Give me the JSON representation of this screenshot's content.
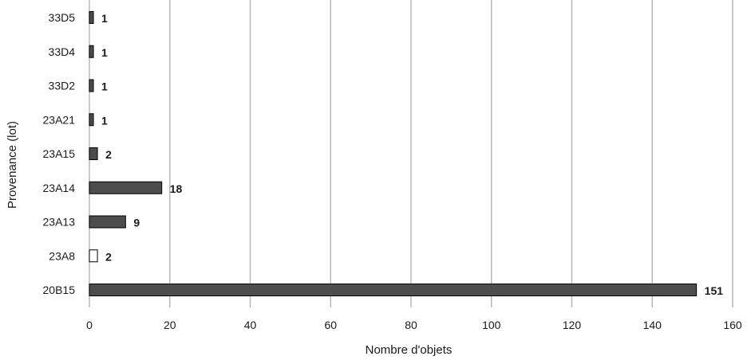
{
  "chart_data": {
    "type": "bar",
    "orientation": "horizontal",
    "categories": [
      "33D5",
      "33D4",
      "33D2",
      "23A21",
      "23A15",
      "23A14",
      "23A13",
      "23A8",
      "20B15"
    ],
    "values": [
      1,
      1,
      1,
      1,
      2,
      18,
      9,
      2,
      151
    ],
    "data_labels": [
      "1",
      "1",
      "1",
      "1",
      "2",
      "18",
      "9",
      "2",
      "151"
    ],
    "bar_colors": [
      "#4d4d4d",
      "#4d4d4d",
      "#4d4d4d",
      "#4d4d4d",
      "#4d4d4d",
      "#4d4d4d",
      "#4d4d4d",
      "#ffffff",
      "#4d4d4d"
    ],
    "xlabel": "Nombre d'objets",
    "ylabel": "Provenance (lot)",
    "xlim": [
      0,
      160
    ],
    "xticks": [
      0,
      20,
      40,
      60,
      80,
      100,
      120,
      140,
      160
    ],
    "xtick_labels": [
      "0",
      "20",
      "40",
      "60",
      "80",
      "100",
      "120",
      "140",
      "160"
    ],
    "grid": "vertical",
    "legend": "none",
    "colors": {
      "bar": "#4d4d4d",
      "bar_outline": "#000000",
      "grid": "#b3b3b3",
      "text": "#1a1a1a"
    }
  }
}
